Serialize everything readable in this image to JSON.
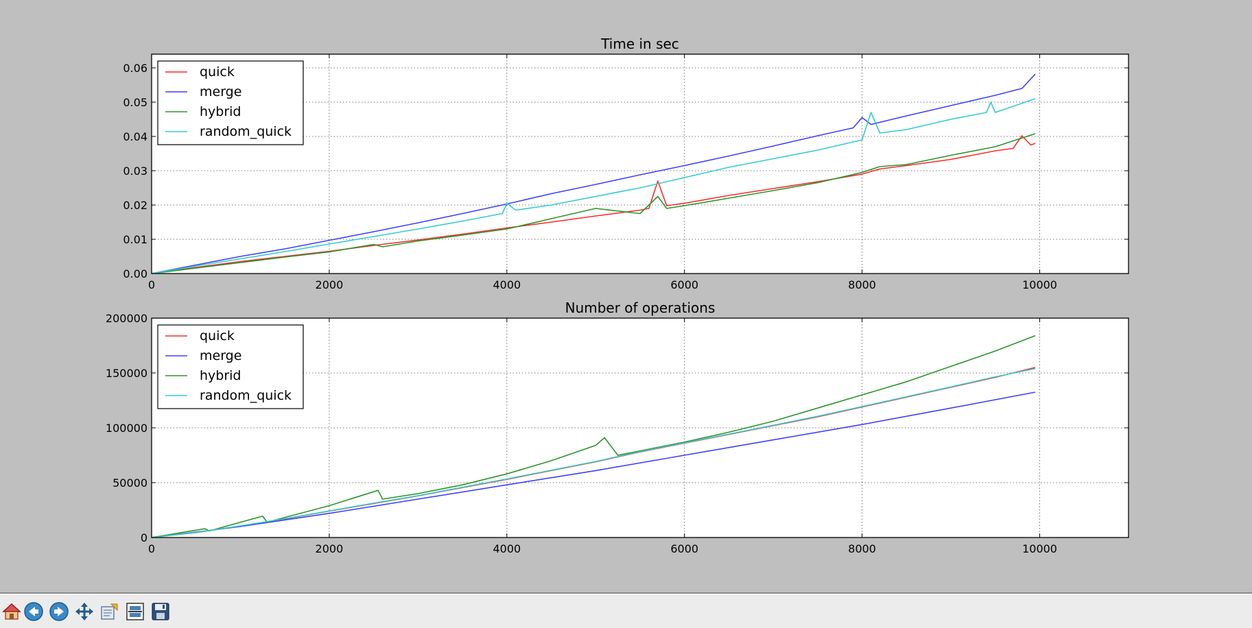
{
  "window": {
    "toolbar": [
      {
        "name": "home-button",
        "icon": "home-icon"
      },
      {
        "name": "back-button",
        "icon": "back-arrow-icon"
      },
      {
        "name": "forward-button",
        "icon": "forward-arrow-icon"
      },
      {
        "name": "pan-button",
        "icon": "move-arrows-icon"
      },
      {
        "name": "zoom-button",
        "icon": "zoom-rect-icon"
      },
      {
        "name": "subplots-button",
        "icon": "subplots-config-icon"
      },
      {
        "name": "save-button",
        "icon": "floppy-disk-icon"
      }
    ]
  },
  "colors": {
    "quick": "#ff2a2a",
    "merge": "#3f3fff",
    "hybrid": "#2a952a",
    "random_quick": "#33cccc",
    "figure_background": "#bfbfbf",
    "toolbar_background": "#ececec"
  },
  "chart_data": [
    {
      "type": "line",
      "title": "Time in sec",
      "xlabel": "",
      "ylabel": "",
      "xlim": [
        0,
        11000
      ],
      "ylim": [
        0,
        0.064
      ],
      "xticks": [
        0,
        2000,
        4000,
        6000,
        8000,
        10000
      ],
      "xtick_labels": [
        "0",
        "2000",
        "4000",
        "6000",
        "8000",
        "10000"
      ],
      "yticks": [
        0.0,
        0.01,
        0.02,
        0.03,
        0.04,
        0.05,
        0.06
      ],
      "ytick_labels": [
        "0.00",
        "0.01",
        "0.02",
        "0.03",
        "0.04",
        "0.05",
        "0.06"
      ],
      "grid": true,
      "legend_position": "top-left",
      "series": [
        {
          "name": "quick",
          "color": "#ff2a2a",
          "x": [
            0,
            500,
            1000,
            1500,
            2000,
            2500,
            3000,
            3500,
            4000,
            4500,
            5000,
            5500,
            5600,
            5700,
            5800,
            6000,
            6500,
            7000,
            7500,
            8000,
            8200,
            8500,
            9000,
            9500,
            9700,
            9800,
            9900,
            9950
          ],
          "y": [
            0,
            0.0018,
            0.0035,
            0.005,
            0.0065,
            0.0082,
            0.0098,
            0.0115,
            0.0133,
            0.015,
            0.0168,
            0.0185,
            0.019,
            0.027,
            0.0198,
            0.0205,
            0.0228,
            0.0248,
            0.0268,
            0.029,
            0.0305,
            0.0315,
            0.0333,
            0.0358,
            0.0365,
            0.0402,
            0.0375,
            0.038
          ]
        },
        {
          "name": "merge",
          "color": "#3f3fff",
          "x": [
            0,
            500,
            1000,
            1500,
            2000,
            2500,
            3000,
            3500,
            4000,
            4500,
            5000,
            5500,
            6000,
            6500,
            7000,
            7500,
            7900,
            8000,
            8100,
            8500,
            9000,
            9500,
            9800,
            9950
          ],
          "y": [
            0,
            0.0025,
            0.005,
            0.0072,
            0.0097,
            0.0122,
            0.0148,
            0.0175,
            0.0203,
            0.0233,
            0.026,
            0.0288,
            0.0315,
            0.0343,
            0.0372,
            0.0402,
            0.0425,
            0.0455,
            0.0435,
            0.046,
            0.049,
            0.052,
            0.054,
            0.0582
          ]
        },
        {
          "name": "hybrid",
          "color": "#2a952a",
          "x": [
            0,
            500,
            1000,
            1500,
            2000,
            2500,
            2600,
            3000,
            3500,
            4000,
            4500,
            5000,
            5500,
            5700,
            5800,
            6000,
            6500,
            7000,
            7500,
            8000,
            8200,
            8500,
            9000,
            9500,
            9950
          ],
          "y": [
            0,
            0.0016,
            0.0032,
            0.0048,
            0.0063,
            0.0085,
            0.0078,
            0.0095,
            0.0112,
            0.013,
            0.016,
            0.019,
            0.0175,
            0.0225,
            0.019,
            0.0198,
            0.022,
            0.0242,
            0.0265,
            0.0295,
            0.0312,
            0.0318,
            0.0345,
            0.037,
            0.0408
          ]
        },
        {
          "name": "random_quick",
          "color": "#33cccc",
          "x": [
            0,
            500,
            1000,
            1500,
            2000,
            2500,
            3000,
            3500,
            3950,
            4000,
            4100,
            4500,
            5000,
            5500,
            6000,
            6500,
            7000,
            7500,
            8000,
            8100,
            8200,
            8500,
            9000,
            9400,
            9450,
            9500,
            9950
          ],
          "y": [
            0,
            0.0022,
            0.0043,
            0.0064,
            0.0086,
            0.0108,
            0.013,
            0.0153,
            0.0175,
            0.0205,
            0.0185,
            0.02,
            0.0225,
            0.025,
            0.028,
            0.031,
            0.0335,
            0.036,
            0.039,
            0.047,
            0.041,
            0.042,
            0.045,
            0.047,
            0.05,
            0.047,
            0.051
          ]
        }
      ]
    },
    {
      "type": "line",
      "title": "Number of operations",
      "xlabel": "",
      "ylabel": "",
      "xlim": [
        0,
        11000
      ],
      "ylim": [
        0,
        200000
      ],
      "xticks": [
        0,
        2000,
        4000,
        6000,
        8000,
        10000
      ],
      "xtick_labels": [
        "0",
        "2000",
        "4000",
        "6000",
        "8000",
        "10000"
      ],
      "yticks": [
        0,
        50000,
        100000,
        150000,
        200000
      ],
      "ytick_labels": [
        "0",
        "50000",
        "100000",
        "150000",
        "200000"
      ],
      "grid": true,
      "legend_position": "top-left",
      "series": [
        {
          "name": "quick",
          "color": "#ff2a2a",
          "x": [
            0,
            500,
            1000,
            1500,
            2000,
            2500,
            3000,
            3500,
            4000,
            4500,
            5000,
            5500,
            6000,
            6500,
            7000,
            7500,
            8000,
            8500,
            9000,
            9500,
            9950
          ],
          "y": [
            0,
            4500,
            10500,
            17000,
            24000,
            31000,
            38000,
            45500,
            53000,
            61000,
            69000,
            78000,
            86000,
            94000,
            102000,
            110000,
            119000,
            128000,
            137000,
            146000,
            155000
          ]
        },
        {
          "name": "merge",
          "color": "#3f3fff",
          "x": [
            0,
            1000,
            2000,
            3000,
            4000,
            5000,
            6000,
            7000,
            8000,
            9000,
            9950
          ],
          "y": [
            0,
            10000,
            22000,
            35000,
            48000,
            61000,
            75000,
            89000,
            103000,
            118000,
            132500
          ]
        },
        {
          "name": "hybrid",
          "color": "#2a952a",
          "x": [
            0,
            600,
            650,
            1250,
            1300,
            2000,
            2550,
            2600,
            3000,
            3500,
            4000,
            4500,
            5000,
            5100,
            5250,
            5500,
            6000,
            6500,
            7000,
            7500,
            8000,
            8500,
            9000,
            9500,
            9950
          ],
          "y": [
            0,
            8000,
            6000,
            19500,
            14000,
            29000,
            43000,
            35000,
            40000,
            48000,
            58000,
            70000,
            84000,
            91000,
            75000,
            79000,
            87000,
            96000,
            106000,
            118000,
            130000,
            142000,
            156000,
            170000,
            184000
          ]
        },
        {
          "name": "random_quick",
          "color": "#33cccc",
          "x": [
            0,
            500,
            1000,
            1500,
            2000,
            2500,
            3000,
            3500,
            4000,
            4500,
            5000,
            5500,
            6000,
            6500,
            7000,
            7500,
            8000,
            8500,
            9000,
            9500,
            9950
          ],
          "y": [
            0,
            4600,
            10600,
            17200,
            24200,
            31300,
            38200,
            45800,
            53400,
            61300,
            69300,
            78300,
            86300,
            94300,
            102300,
            110500,
            119400,
            128400,
            137300,
            146500,
            154000
          ]
        }
      ]
    }
  ]
}
